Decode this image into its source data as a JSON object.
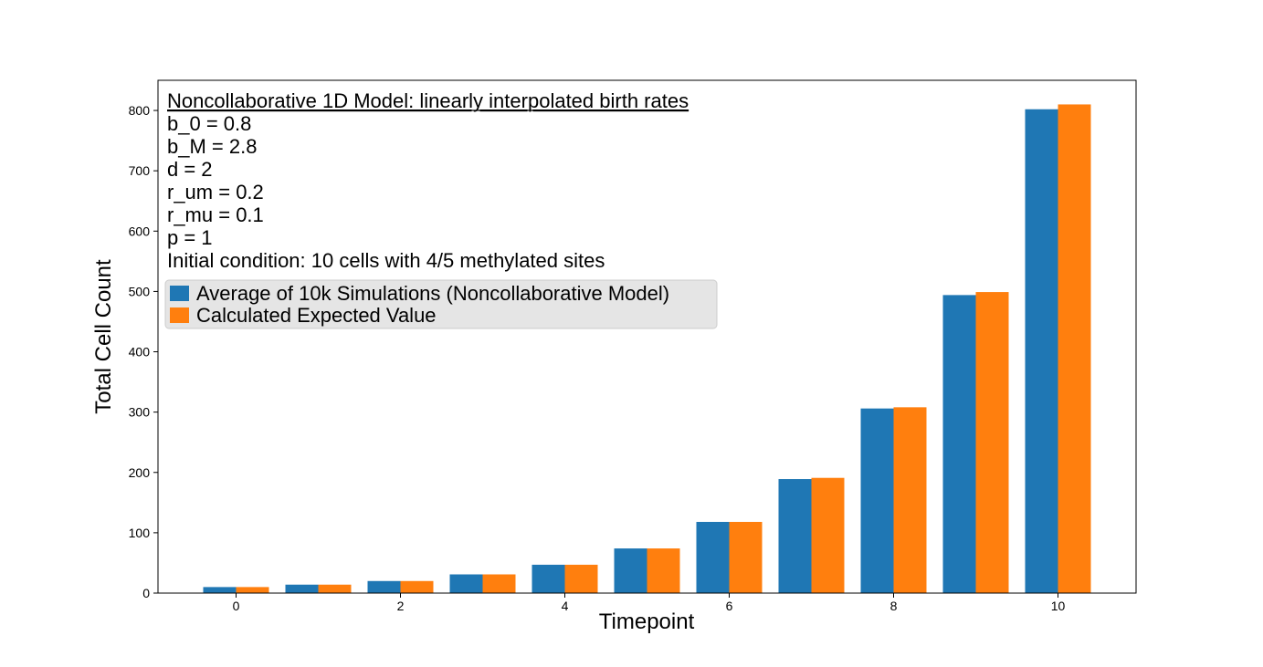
{
  "chart_data": {
    "type": "bar",
    "x": [
      0,
      1,
      2,
      3,
      4,
      5,
      6,
      7,
      8,
      9,
      10
    ],
    "x_ticks": [
      0,
      2,
      4,
      6,
      8,
      10
    ],
    "y_ticks": [
      0,
      100,
      200,
      300,
      400,
      500,
      600,
      700,
      800
    ],
    "xlim": [
      -0.95,
      10.95
    ],
    "ylim": [
      0,
      850
    ],
    "xlabel": "Timepoint",
    "ylabel": "Total Cell Count",
    "grid": false,
    "legend_placement": "upper-left",
    "annotation": {
      "title": "Noncollaborative 1D Model: linearly interpolated birth rates",
      "lines": [
        "b_0 = 0.8",
        "b_M = 2.8",
        "d = 2",
        "r_um = 0.2",
        "r_mu = 0.1",
        "p = 1",
        "Initial condition: 10 cells with 4/5 methylated sites"
      ]
    },
    "series": [
      {
        "name": "Average of 10k Simulations (Noncollaborative Model)",
        "color": "#1f77b4",
        "values": [
          10,
          14,
          20,
          31,
          47,
          74,
          118,
          189,
          306,
          494,
          802
        ]
      },
      {
        "name": "Calculated Expected Value",
        "color": "#ff7f0e",
        "values": [
          10,
          14,
          20,
          31,
          47,
          74,
          118,
          191,
          308,
          499,
          810
        ]
      }
    ]
  }
}
